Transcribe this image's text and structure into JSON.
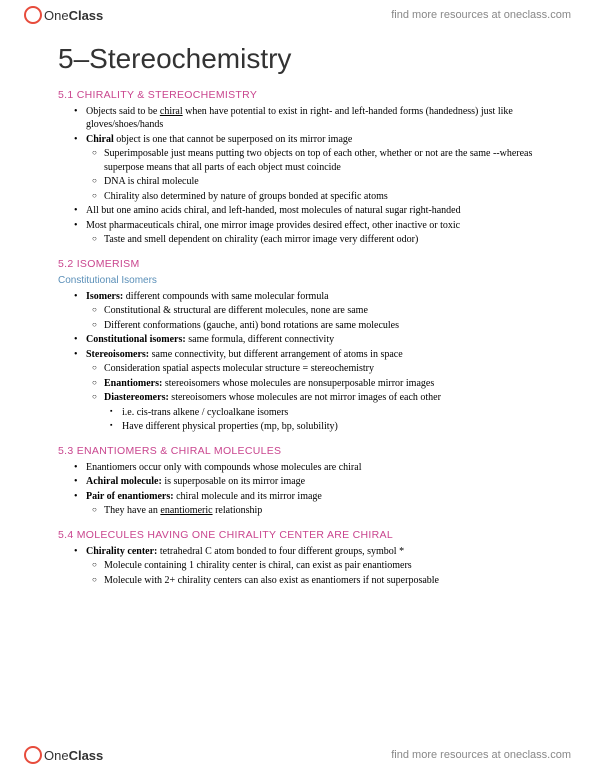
{
  "brand": {
    "part1": "One",
    "part2": "Class"
  },
  "headerLink": "find more resources at oneclass.com",
  "footerLink": "find more resources at oneclass.com",
  "title": "5–Stereochemistry",
  "colors": {
    "heading": "#c9458e",
    "subheading": "#5a8fb8",
    "logoRing": "#e74c3c",
    "text": "#000000",
    "muted": "#888888",
    "background": "#ffffff"
  },
  "s1": {
    "h": "5.1 CHIRALITY & STEREOCHEMISTRY",
    "a": "Objects said to be ",
    "a_u": "chiral",
    "a2": " when have potential to exist in right- and left-handed forms (handedness) just like gloves/shoes/hands",
    "b": "Chiral",
    "b2": " object is one that cannot be superposed on its mirror image",
    "b_i": "Superimposable just means putting two objects on top of each other, whether or not are the same --whereas superpose means that all parts of each object must coincide",
    "b_ii": "DNA is chiral molecule",
    "b_iii": "Chirality also determined by nature of groups bonded at specific atoms",
    "c": "All but one amino acids chiral, and left-handed, most molecules of natural sugar right-handed",
    "d": "Most pharmaceuticals chiral, one mirror image provides desired effect, other inactive or toxic",
    "d_i": "Taste and smell dependent on chirality (each mirror image very different odor)"
  },
  "s2": {
    "h": "5.2 ISOMERISM",
    "sub": "Constitutional Isomers",
    "a": "Isomers:",
    "a2": " different compounds with same molecular formula",
    "a_i": "Constitutional & structural are different molecules, none are same",
    "a_ii": "Different conformations (gauche, anti) bond rotations are same molecules",
    "b": "Constitutional isomers:",
    "b2": " same formula, different connectivity",
    "c": "Stereoisomers:",
    "c2": " same connectivity, but different arrangement of atoms in space",
    "c_i": "Consideration spatial aspects molecular structure = stereochemistry",
    "c_ii": "Enantiomers:",
    "c_ii2": " stereoisomers whose molecules are nonsuperposable mirror images",
    "c_iii": "Diastereomers:",
    "c_iii2": " stereoisomers whose molecules are not mirror images of each other",
    "c_iii_a": "i.e. cis-trans alkene / cycloalkane isomers",
    "c_iii_b": "Have different physical properties (mp, bp, solubility)"
  },
  "s3": {
    "h": "5.3 ENANTIOMERS & CHIRAL MOLECULES",
    "a": "Enantiomers occur only with compounds whose molecules are chiral",
    "b": "Achiral molecule:",
    "b2": " is superposable on its mirror image",
    "c": "Pair of enantiomers:",
    "c2": " chiral molecule and its mirror image",
    "c_i1": "They have an ",
    "c_i_u": "enantiomeric",
    "c_i2": " relationship"
  },
  "s4": {
    "h": "5.4 MOLECULES HAVING ONE CHIRALITY CENTER ARE CHIRAL",
    "a": "Chirality center:",
    "a2": " tetrahedral C atom bonded to four different groups, symbol *",
    "a_i": "Molecule containing 1 chirality center is chiral, can exist as pair enantiomers",
    "a_ii": "Molecule with 2+ chirality centers can also exist as enantiomers if not superposable"
  }
}
